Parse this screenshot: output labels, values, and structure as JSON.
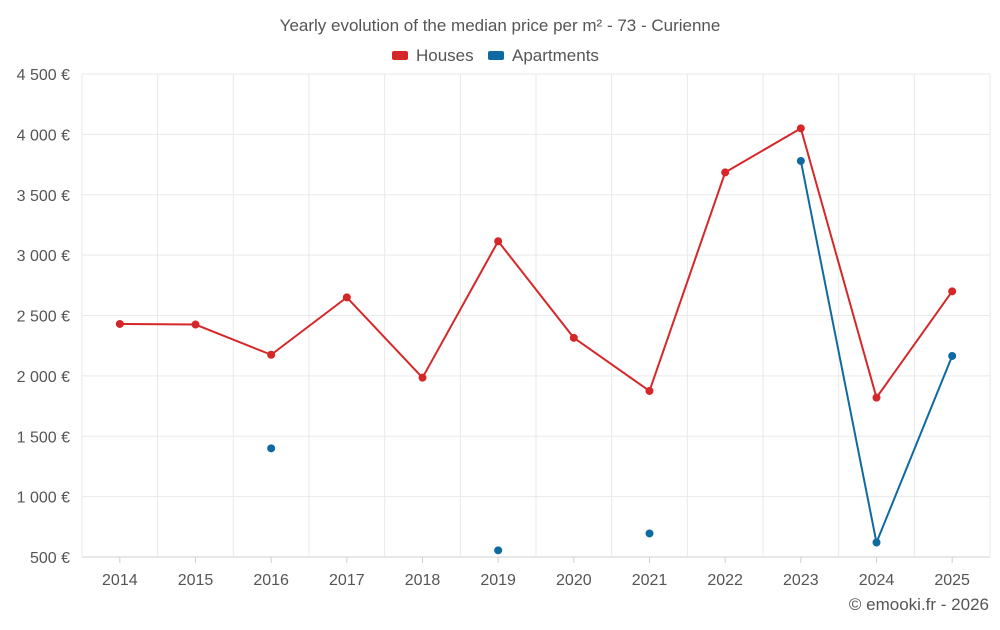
{
  "colors": {
    "houses": "#d62728",
    "apartments": "#0e6aa0",
    "grid": "#e9e9e9",
    "axis": "#cfcfcf",
    "text": "#555555"
  },
  "chart_data": {
    "type": "line",
    "title": "Yearly evolution of the median price per m² - 73 - Curienne",
    "legend_position": "top-center",
    "grid": true,
    "categories": [
      "2014",
      "2015",
      "2016",
      "2017",
      "2018",
      "2019",
      "2020",
      "2021",
      "2022",
      "2023",
      "2024",
      "2025"
    ],
    "ylim": [
      500,
      4500
    ],
    "yticks": [
      500,
      1000,
      1500,
      2000,
      2500,
      3000,
      3500,
      4000,
      4500
    ],
    "ytick_labels": [
      "500 €",
      "1 000 €",
      "1 500 €",
      "2 000 €",
      "2 500 €",
      "3 000 €",
      "3 500 €",
      "4 000 €",
      "4 500 €"
    ],
    "series": [
      {
        "name": "Houses",
        "color": "#d62728",
        "values": [
          2430,
          2425,
          2175,
          2650,
          1985,
          3115,
          2315,
          1875,
          3685,
          4050,
          1820,
          2700
        ]
      },
      {
        "name": "Apartments",
        "color": "#0e6aa0",
        "values": [
          null,
          null,
          1400,
          null,
          null,
          555,
          null,
          695,
          null,
          3780,
          620,
          2165
        ]
      }
    ]
  },
  "footer": {
    "credit": "© emooki.fr - 2026"
  }
}
